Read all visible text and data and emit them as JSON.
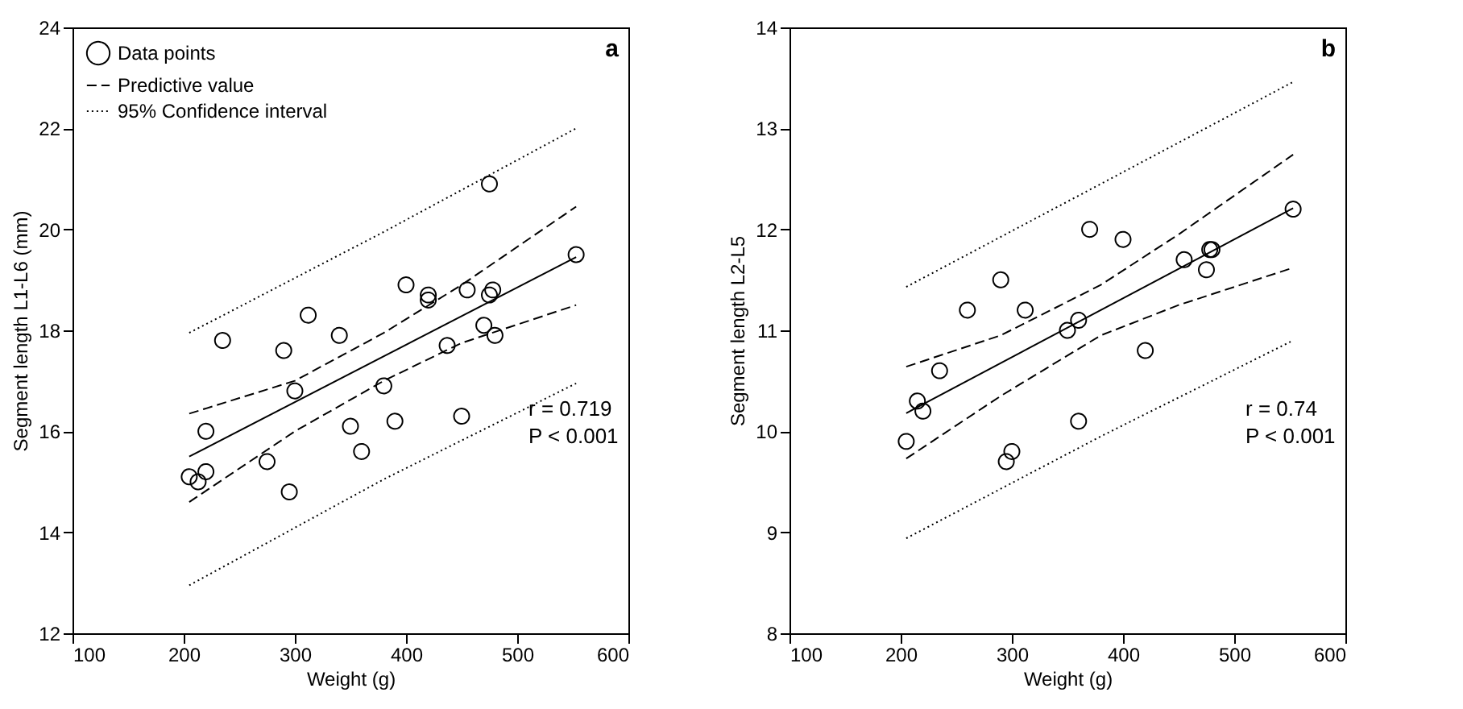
{
  "chart_data": [
    {
      "type": "scatter",
      "xlabel": "Weight (g)",
      "ylabel": "Segment length L1-L6 (mm)",
      "xlim": [
        100,
        600
      ],
      "xticks": [
        100,
        200,
        300,
        400,
        500,
        600
      ],
      "ylim": [
        12,
        24
      ],
      "yticks": [
        12,
        14,
        16,
        18,
        20,
        22,
        24
      ],
      "grid": false,
      "legend": "top left",
      "annotations": [
        "a",
        "r = 0.719",
        "P < 0.001"
      ],
      "series": [
        {
          "name": "Data points",
          "marker": "circle",
          "color": "#000000",
          "x": [
            205,
            213,
            220,
            220,
            235,
            275,
            290,
            295,
            300,
            312,
            340,
            350,
            360,
            380,
            390,
            400,
            420,
            420,
            437,
            450,
            455,
            470,
            475,
            475,
            478,
            480,
            553
          ],
          "values": [
            15.1,
            15.0,
            15.2,
            16.0,
            17.8,
            15.4,
            17.6,
            14.8,
            16.8,
            18.3,
            17.9,
            16.1,
            15.6,
            16.9,
            16.2,
            18.9,
            18.7,
            18.6,
            17.7,
            16.3,
            18.8,
            18.1,
            20.9,
            18.7,
            18.8,
            17.9,
            19.5
          ]
        },
        {
          "type": "line",
          "line_style": "solid",
          "color": "#000000",
          "x": [
            205,
            553
          ],
          "values": [
            15.5,
            19.45
          ]
        },
        {
          "name": "Predictive value",
          "type": "line",
          "line_style": "dashed",
          "color": "#000000",
          "x": [
            205,
            300,
            380,
            450,
            553
          ],
          "values": [
            16.35,
            17.0,
            17.95,
            18.9,
            20.45
          ]
        },
        {
          "type": "line",
          "line_style": "dashed",
          "color": "#000000",
          "x": [
            205,
            300,
            380,
            450,
            553
          ],
          "values": [
            14.6,
            16.0,
            17.0,
            17.75,
            18.5
          ]
        },
        {
          "name": "95% Confidence interval",
          "type": "line",
          "line_style": "dotted",
          "color": "#000000",
          "x": [
            205,
            380,
            553
          ],
          "values": [
            17.95,
            19.95,
            22.0
          ]
        },
        {
          "type": "line",
          "line_style": "dotted",
          "color": "#000000",
          "x": [
            205,
            380,
            553
          ],
          "values": [
            12.95,
            15.05,
            16.95
          ]
        }
      ]
    },
    {
      "type": "scatter",
      "xlabel": "Weight (g)",
      "ylabel": "Segment length L2-L5",
      "xlim": [
        100,
        600
      ],
      "xticks": [
        100,
        200,
        300,
        400,
        500,
        600
      ],
      "ylim": [
        8,
        14
      ],
      "yticks": [
        8,
        9,
        10,
        11,
        12,
        13,
        14
      ],
      "grid": false,
      "legend": "top left",
      "annotations": [
        "b",
        "r = 0.74",
        "P < 0.001"
      ],
      "series": [
        {
          "name": "Data points",
          "marker": "circle",
          "color": "#000000",
          "x": [
            205,
            215,
            220,
            235,
            260,
            290,
            295,
            300,
            312,
            350,
            360,
            360,
            370,
            400,
            420,
            455,
            475,
            478,
            480,
            553
          ],
          "values": [
            9.9,
            10.3,
            10.2,
            10.6,
            11.2,
            11.5,
            9.7,
            9.8,
            11.2,
            11.0,
            11.1,
            10.1,
            12.0,
            11.9,
            10.8,
            11.7,
            11.6,
            11.8,
            11.8,
            12.2
          ]
        },
        {
          "type": "line",
          "line_style": "solid",
          "color": "#000000",
          "x": [
            205,
            553
          ],
          "values": [
            10.18,
            12.21
          ]
        },
        {
          "name": "Predictive value",
          "type": "line",
          "line_style": "dashed",
          "color": "#000000",
          "x": [
            205,
            290,
            380,
            450,
            553
          ],
          "values": [
            10.64,
            10.95,
            11.45,
            11.95,
            12.74
          ]
        },
        {
          "type": "line",
          "line_style": "dashed",
          "color": "#000000",
          "x": [
            205,
            290,
            380,
            450,
            553
          ],
          "values": [
            9.73,
            10.35,
            10.95,
            11.25,
            11.62
          ]
        },
        {
          "name": "95% Confidence interval",
          "type": "line",
          "line_style": "dotted",
          "color": "#000000",
          "x": [
            205,
            380,
            553
          ],
          "values": [
            11.43,
            12.45,
            13.46
          ]
        },
        {
          "type": "line",
          "line_style": "dotted",
          "color": "#000000",
          "x": [
            205,
            380,
            553
          ],
          "values": [
            8.94,
            9.95,
            10.9
          ]
        }
      ]
    }
  ]
}
